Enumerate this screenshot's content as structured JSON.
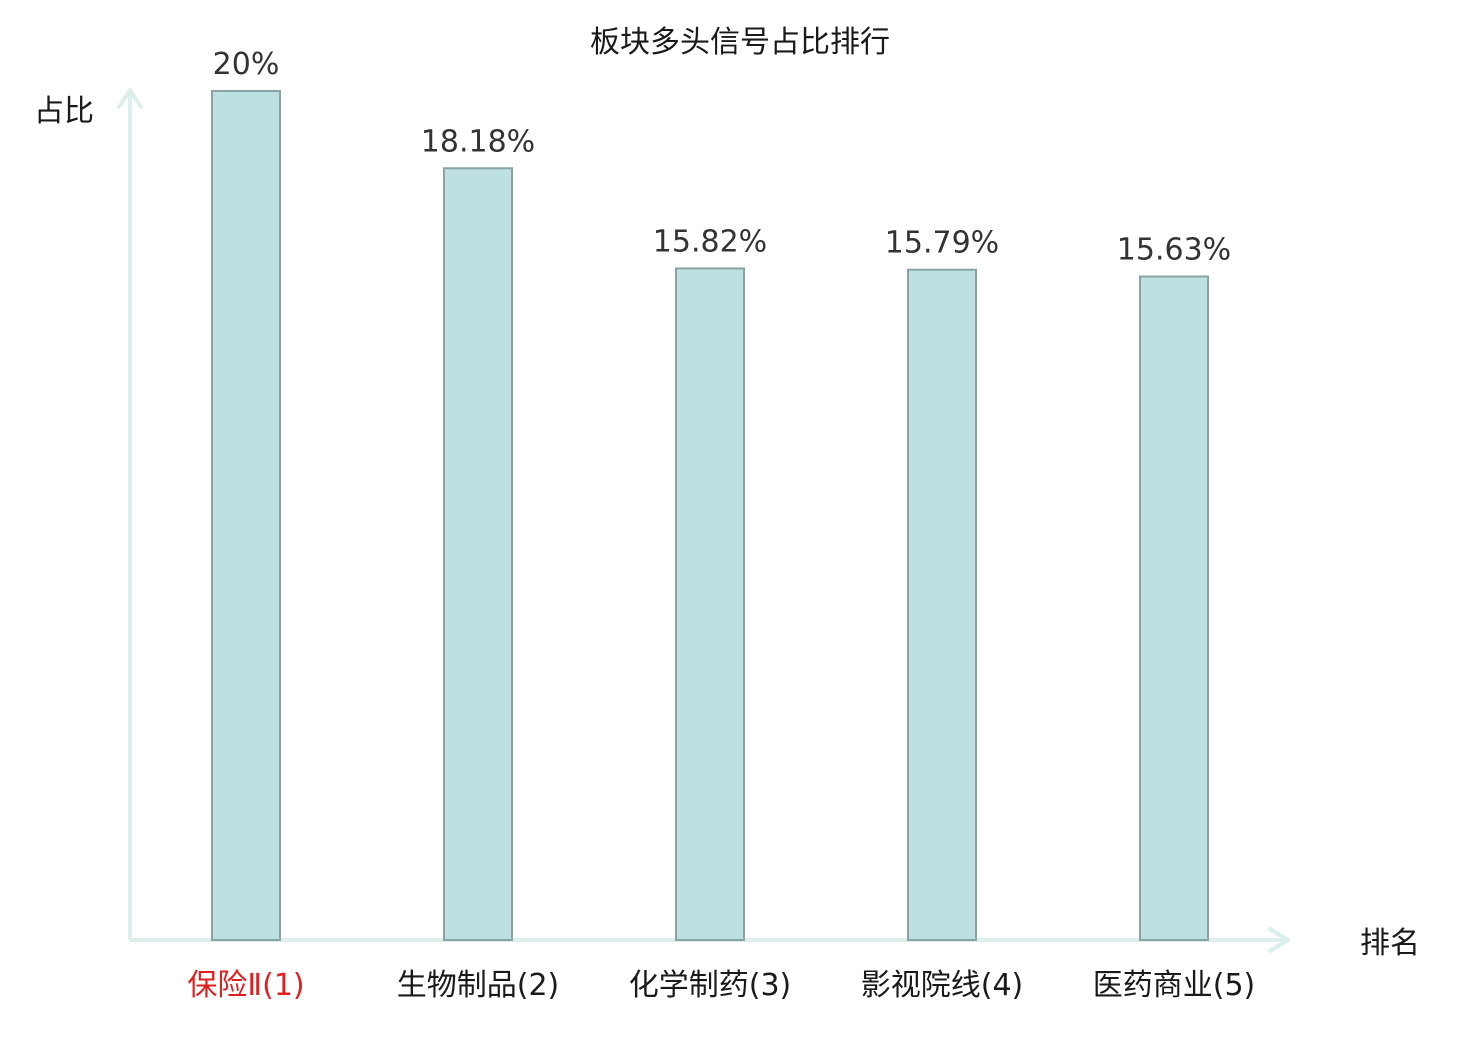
{
  "chart_data": {
    "type": "bar",
    "title": "板块多头信号占比排行",
    "ylabel": "占比",
    "xlabel": "排名",
    "categories": [
      "保险Ⅱ(1)",
      "生物制品(2)",
      "化学制药(3)",
      "影视院线(4)",
      "医药商业(5)"
    ],
    "values": [
      20,
      18.18,
      15.82,
      15.79,
      15.63
    ],
    "value_labels": [
      "20%",
      "18.18%",
      "15.82%",
      "15.79%",
      "15.63%"
    ],
    "ylim": [
      0,
      20
    ],
    "grid": false,
    "highlight_index": 0,
    "colors": {
      "bar_fill": "#bde0e1",
      "bar_stroke": "#8aa3a4",
      "axis": "#dcefed",
      "text": "#1a1a1a",
      "value_label": "#333333",
      "highlight_label": "#e02020"
    }
  }
}
